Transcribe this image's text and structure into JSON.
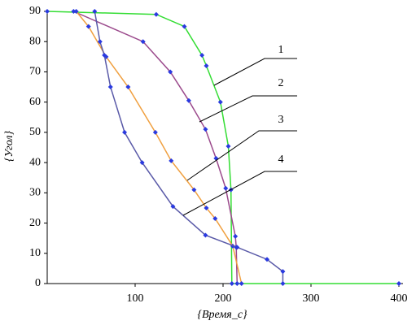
{
  "chart_data": {
    "type": "line",
    "x_label": "{Время_с}",
    "y_label": "{Угол}",
    "xlim": [
      0,
      400
    ],
    "xticks": [
      100,
      200,
      300,
      400
    ],
    "ylim": [
      0,
      90
    ],
    "yticks": [
      0,
      10,
      20,
      30,
      40,
      50,
      60,
      70,
      80,
      90
    ],
    "grid": false,
    "series": [
      {
        "name": "1",
        "color": "#33dd33",
        "x": [
          0,
          124,
          156,
          176,
          181,
          197,
          206,
          209,
          210,
          400
        ],
        "values": [
          90,
          89,
          85,
          75.5,
          72,
          60,
          45.4,
          31,
          0,
          0
        ]
      },
      {
        "name": "2",
        "color": "#9b4a8c",
        "x": [
          30,
          109,
          140,
          161,
          180,
          192,
          203,
          214,
          215,
          216
        ],
        "values": [
          90,
          80,
          70,
          60.5,
          51,
          41.4,
          31.5,
          15.6,
          12,
          0
        ]
      },
      {
        "name": "3",
        "color": "#f0a040",
        "x": [
          33,
          47,
          67,
          92,
          123,
          141,
          167,
          181,
          191,
          211,
          221
        ],
        "values": [
          90,
          85,
          75,
          65,
          50,
          40.6,
          31,
          25,
          21.5,
          12.4,
          0
        ]
      },
      {
        "name": "4",
        "color": "#5a5aa8",
        "x": [
          54,
          60,
          65,
          72,
          88,
          108,
          143,
          180,
          216,
          250,
          268,
          268
        ],
        "values": [
          90,
          80,
          75.5,
          65,
          50,
          40,
          25.5,
          16,
          12,
          8,
          4,
          0
        ]
      }
    ]
  }
}
